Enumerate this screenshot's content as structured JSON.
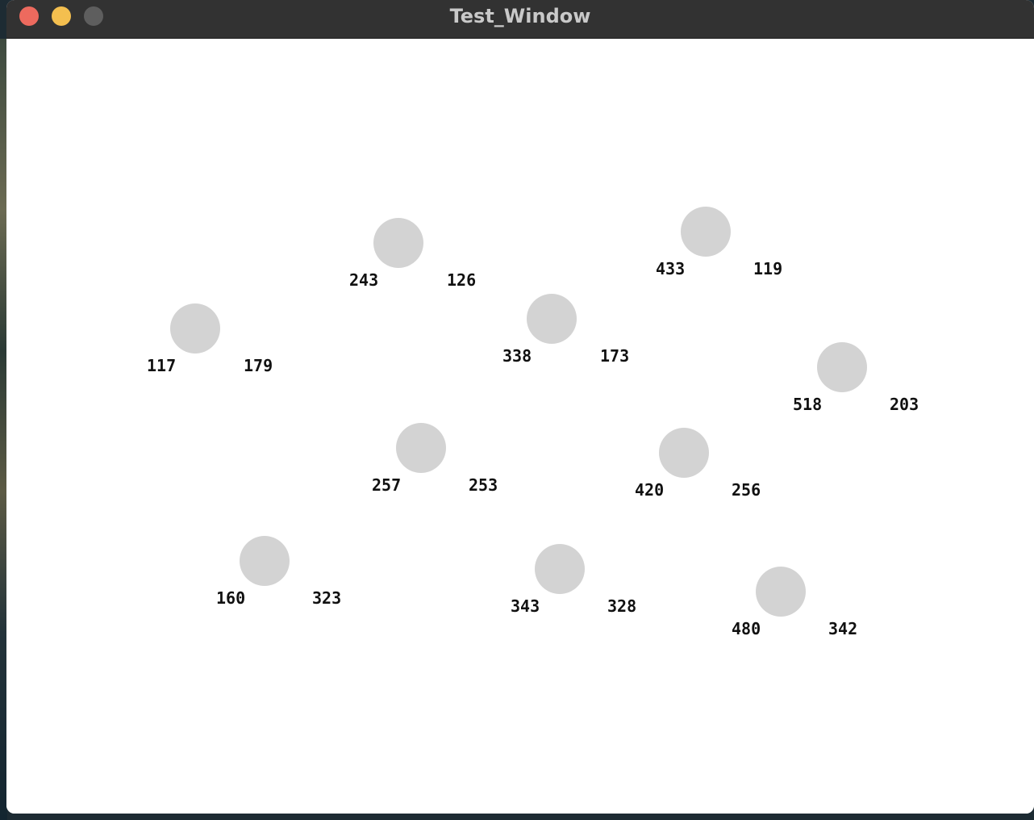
{
  "window": {
    "title": "Test_Window"
  },
  "points": [
    {
      "x": "243",
      "y": "126"
    },
    {
      "x": "433",
      "y": "119"
    },
    {
      "x": "117",
      "y": "179"
    },
    {
      "x": "338",
      "y": "173"
    },
    {
      "x": "518",
      "y": "203"
    },
    {
      "x": "257",
      "y": "253"
    },
    {
      "x": "420",
      "y": "256"
    },
    {
      "x": "160",
      "y": "323"
    },
    {
      "x": "343",
      "y": "328"
    },
    {
      "x": "480",
      "y": "342"
    }
  ],
  "colors": {
    "circle": "#d3d3d3",
    "titlebar": "#323232",
    "canvas": "#ffffff"
  }
}
